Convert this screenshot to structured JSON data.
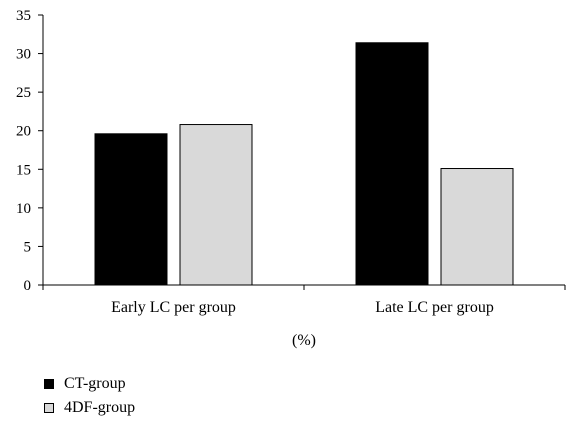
{
  "chart_data": {
    "type": "bar",
    "categories": [
      "Early LC per group",
      "Late LC per group"
    ],
    "series": [
      {
        "name": "CT-group",
        "values": [
          19.6,
          31.4
        ],
        "color": "#000000"
      },
      {
        "name": "4DF-group",
        "values": [
          20.8,
          15.1
        ],
        "color": "#d9d9d9"
      }
    ],
    "xlabel": "(%)",
    "ylabel": "",
    "ylim": [
      0,
      35
    ],
    "yticks": [
      0,
      5,
      10,
      15,
      20,
      25,
      30,
      35
    ],
    "grid": false,
    "legend_position": "bottom-left"
  }
}
